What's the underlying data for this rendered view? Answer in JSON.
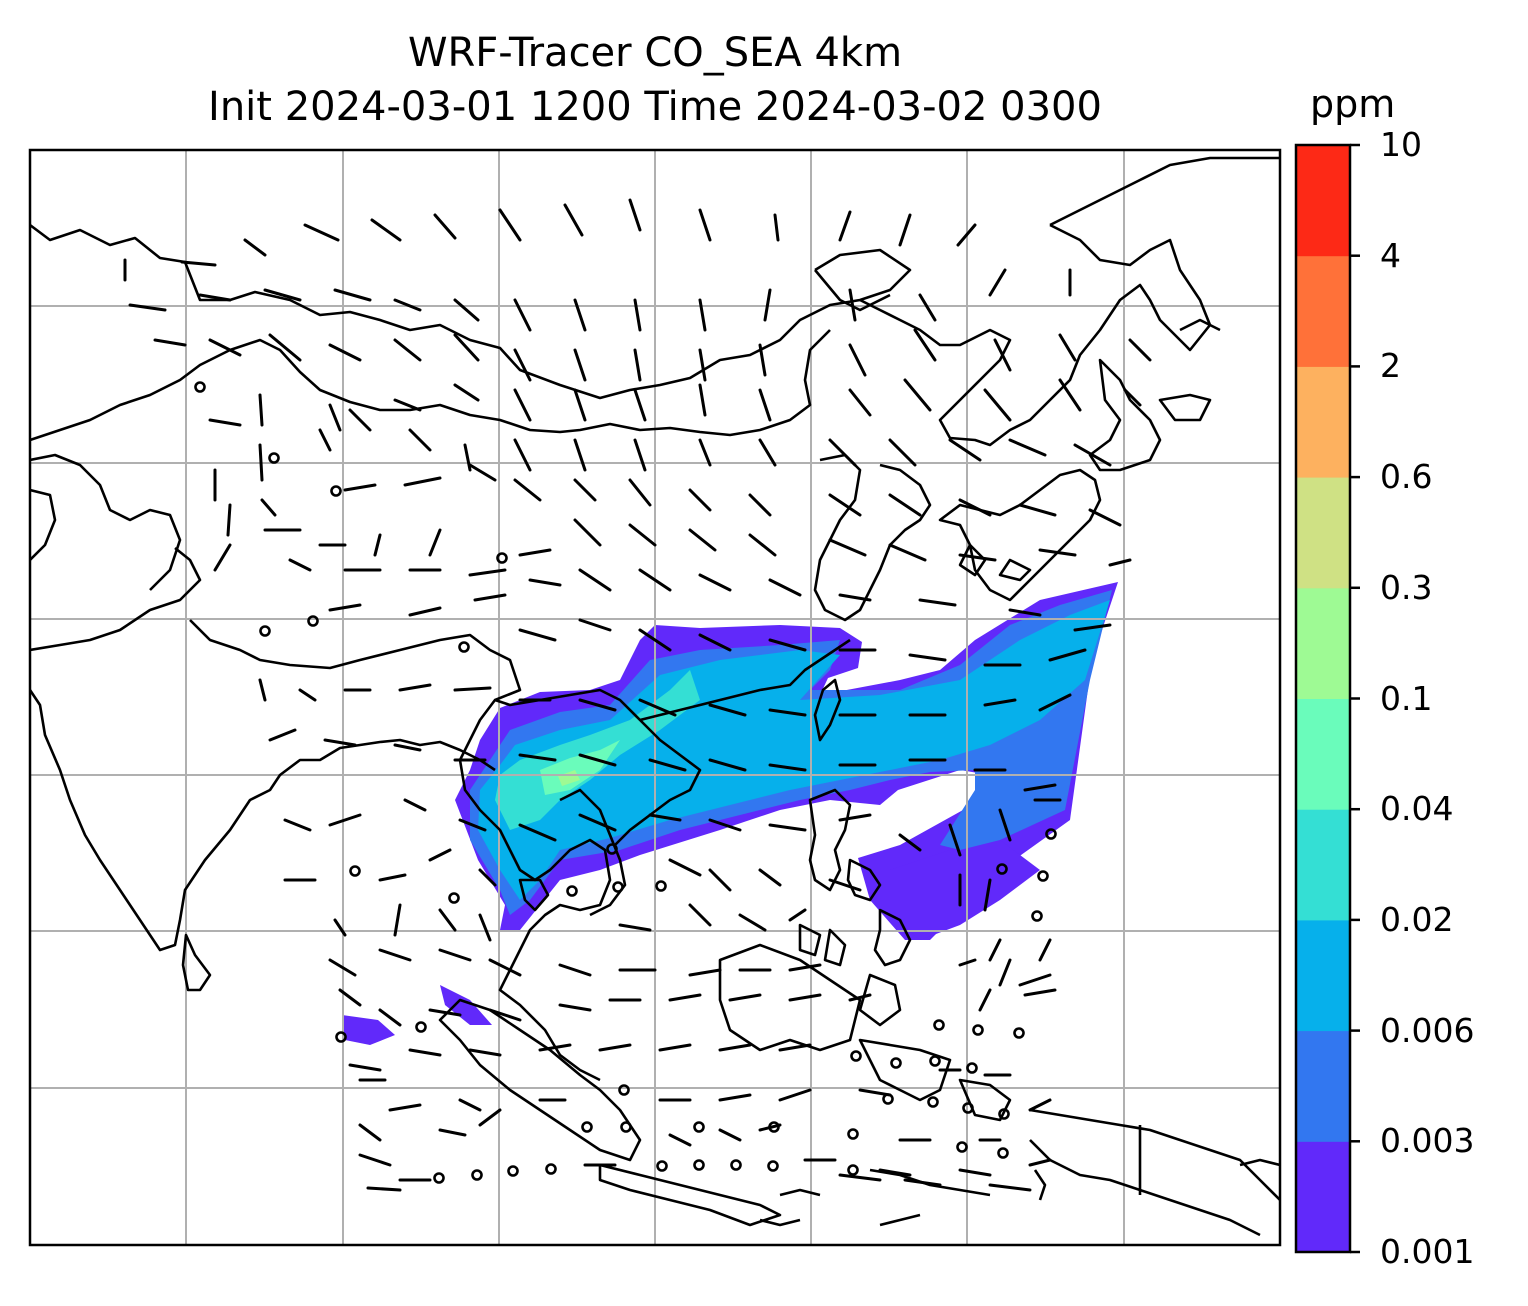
{
  "title_line1": "WRF-Tracer CO_SEA 4km",
  "title_line2": "Init 2024-03-01 1200 Time 2024-03-02 0300",
  "colorbar": {
    "unit": "ppm",
    "levels": [
      "0.001",
      "0.003",
      "0.006",
      "0.02",
      "0.04",
      "0.1",
      "0.3",
      "0.6",
      "2",
      "4",
      "10"
    ],
    "colors": [
      "#6129fa",
      "#3277f0",
      "#06b0eb",
      "#34dfd4",
      "#6afcbb",
      "#9efa94",
      "#cfe184",
      "#fdb15f",
      "#ff7139",
      "#fd2916"
    ]
  },
  "map": {
    "gridlines": true,
    "coastlines": true,
    "wind_barbs": true,
    "plume_shown_levels": [
      "0.001",
      "0.003",
      "0.006",
      "0.02",
      "0.04",
      "0.1"
    ]
  }
}
